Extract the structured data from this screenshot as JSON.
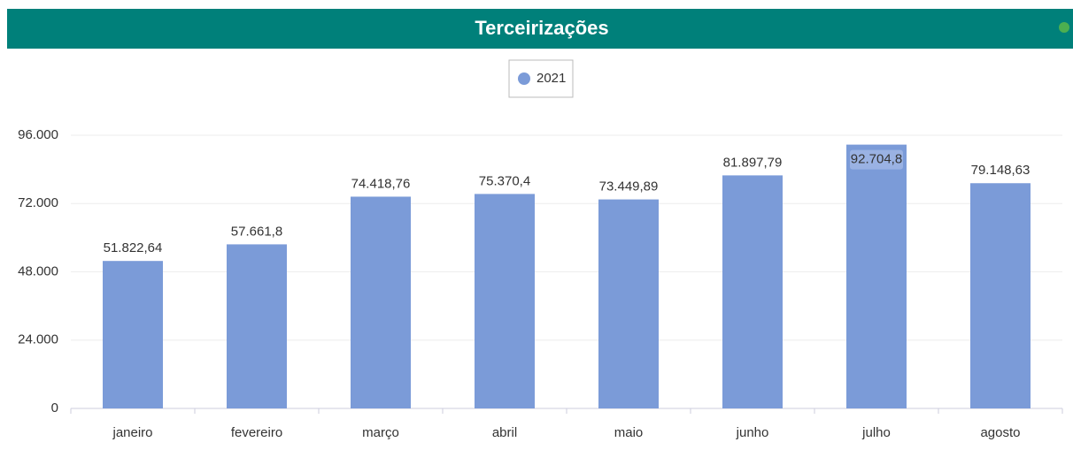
{
  "chart_data": {
    "type": "bar",
    "title": "Terceirizações",
    "categories": [
      "janeiro",
      "fevereiro",
      "março",
      "abril",
      "maio",
      "junho",
      "julho",
      "agosto"
    ],
    "series": [
      {
        "name": "2021",
        "color": "#7b9bd8",
        "values": [
          51822.64,
          57661.8,
          74418.76,
          75370.4,
          73449.89,
          81897.79,
          92704.8,
          79148.63
        ],
        "value_labels": [
          "51.822,64",
          "57.661,8",
          "74.418,76",
          "75.370,4",
          "73.449,89",
          "81.897,79",
          "92.704,8",
          "79.148,63"
        ]
      }
    ],
    "ylim": [
      0,
      96000
    ],
    "yticks": [
      0,
      {
        "value": 24000,
        "label": "24.000"
      },
      {
        "value": 48000,
        "label": "48.000"
      },
      {
        "value": 72000,
        "label": "72.000"
      },
      {
        "value": 96000,
        "label": "96.000"
      }
    ],
    "grid": true,
    "legend": "top"
  }
}
